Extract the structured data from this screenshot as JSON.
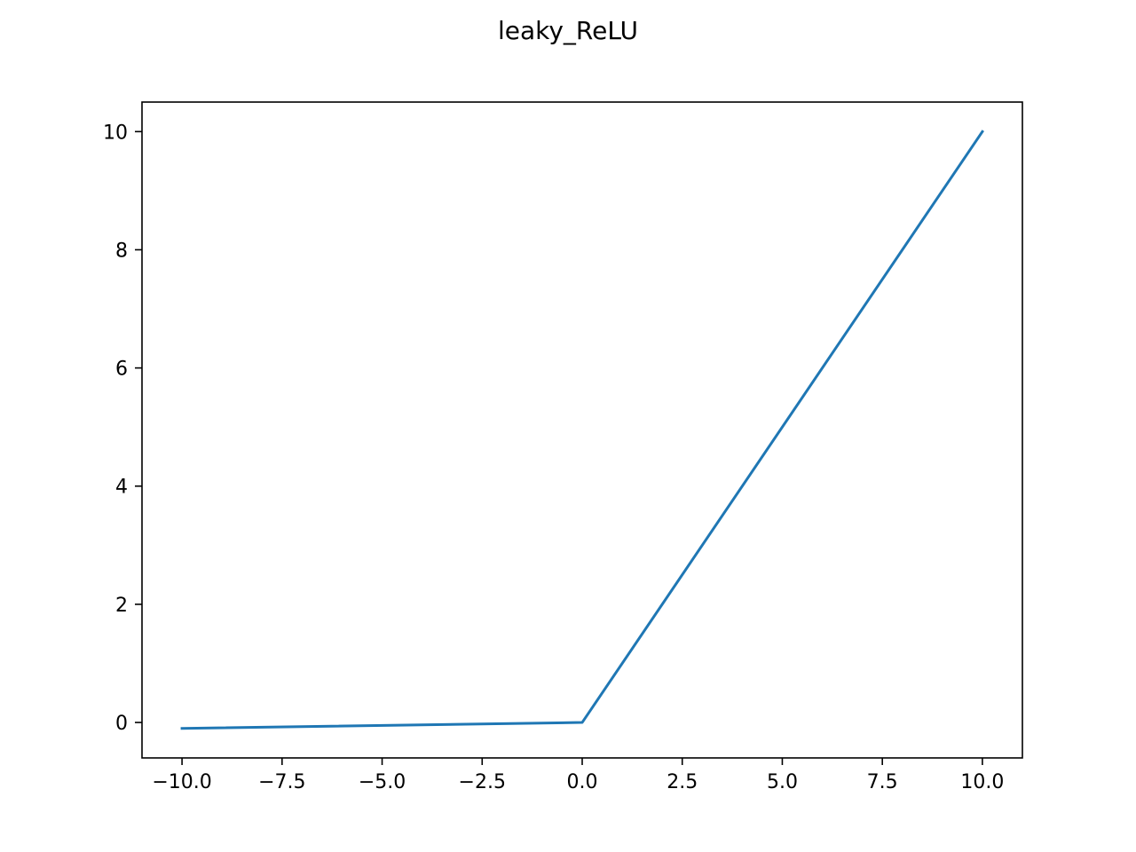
{
  "chart_data": {
    "type": "line",
    "title": "leaky_ReLU",
    "xlabel": "",
    "ylabel": "",
    "xlim": [
      -11.0,
      11.0
    ],
    "ylim": [
      -0.6,
      10.5
    ],
    "xticks": [
      -10.0,
      -7.5,
      -5.0,
      -2.5,
      0.0,
      2.5,
      5.0,
      7.5,
      10.0
    ],
    "xtick_labels": [
      "−10.0",
      "−7.5",
      "−5.0",
      "−2.5",
      "0.0",
      "2.5",
      "5.0",
      "7.5",
      "10.0"
    ],
    "yticks": [
      0,
      2,
      4,
      6,
      8,
      10
    ],
    "ytick_labels": [
      "0",
      "2",
      "4",
      "6",
      "8",
      "10"
    ],
    "grid": false,
    "series": [
      {
        "color": "#1f77b4",
        "x": [
          -10.0,
          0.0,
          10.0
        ],
        "y": [
          -0.1,
          0.0,
          10.0
        ]
      }
    ]
  }
}
